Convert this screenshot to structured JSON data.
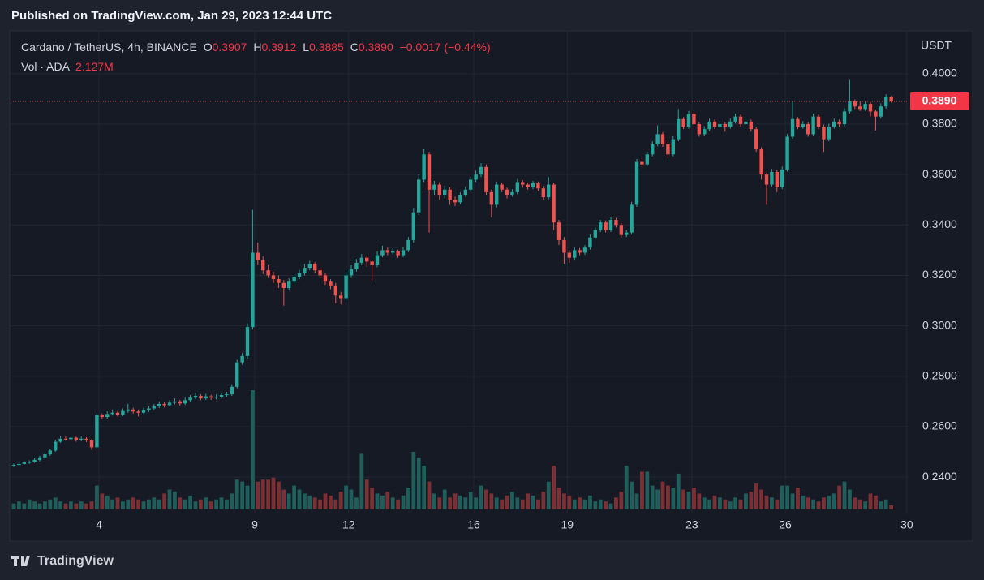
{
  "published": "Published on TradingView.com, Jan 29, 2023 12:44 UTC",
  "brand": "TradingView",
  "chart_data": {
    "type": "candlestick",
    "legend": {
      "symbol": "Cardano / TetherUS, 4h, BINANCE",
      "o_label": "O",
      "open": "0.3907",
      "h_label": "H",
      "high": "0.3912",
      "l_label": "L",
      "low": "0.3885",
      "c_label": "C",
      "close": "0.3890",
      "change": "−0.0017 (−0.44%)"
    },
    "volume_legend": {
      "label": "Vol · ADA",
      "value_label": "2.127M"
    },
    "currency": "USDT",
    "up_color": "#26a69a",
    "down_color": "#ef5350",
    "up_volume_color": "#1f5e5a",
    "down_volume_color": "#7a3034",
    "grid": true,
    "ylim": [
      0.2265,
      0.417
    ],
    "yticks": [
      {
        "value": 0.24,
        "label": "0.2400"
      },
      {
        "value": 0.26,
        "label": "0.2600"
      },
      {
        "value": 0.28,
        "label": "0.2800"
      },
      {
        "value": 0.3,
        "label": "0.3000"
      },
      {
        "value": 0.32,
        "label": "0.3200"
      },
      {
        "value": 0.34,
        "label": "0.3400"
      },
      {
        "value": 0.36,
        "label": "0.3600"
      },
      {
        "value": 0.38,
        "label": "0.3800"
      },
      {
        "value": 0.4,
        "label": "0.4000"
      }
    ],
    "xlim": [
      -0.47,
      172.34
    ],
    "xticks": [
      {
        "value": 16.4,
        "label": "4"
      },
      {
        "value": 46.4,
        "label": "9"
      },
      {
        "value": 64.5,
        "label": "12"
      },
      {
        "value": 88.6,
        "label": "16"
      },
      {
        "value": 106.6,
        "label": "19"
      },
      {
        "value": 130.6,
        "label": "23"
      },
      {
        "value": 148.6,
        "label": "26"
      },
      {
        "value": 172.0,
        "label": "30"
      }
    ],
    "last_price": {
      "value": 0.389,
      "label": "0.3890"
    },
    "candles": [
      [
        0.2445,
        0.2453,
        0.244,
        0.2448
      ],
      [
        0.2448,
        0.2458,
        0.2444,
        0.2452
      ],
      [
        0.2452,
        0.2463,
        0.2448,
        0.2458
      ],
      [
        0.2458,
        0.2466,
        0.2452,
        0.246
      ],
      [
        0.246,
        0.2474,
        0.2456,
        0.2468
      ],
      [
        0.2468,
        0.2484,
        0.2462,
        0.2478
      ],
      [
        0.2478,
        0.2496,
        0.2472,
        0.249
      ],
      [
        0.249,
        0.2512,
        0.2484,
        0.2505
      ],
      [
        0.2505,
        0.2548,
        0.25,
        0.254
      ],
      [
        0.254,
        0.2562,
        0.2535,
        0.2552
      ],
      [
        0.2552,
        0.256,
        0.2544,
        0.255
      ],
      [
        0.255,
        0.2564,
        0.2545,
        0.2556
      ],
      [
        0.2556,
        0.256,
        0.254,
        0.2548
      ],
      [
        0.2548,
        0.256,
        0.2542,
        0.2552
      ],
      [
        0.2552,
        0.2558,
        0.2538,
        0.2545
      ],
      [
        0.2545,
        0.255,
        0.2508,
        0.2518
      ],
      [
        0.2518,
        0.2655,
        0.2512,
        0.2645
      ],
      [
        0.2645,
        0.2652,
        0.263,
        0.2638
      ],
      [
        0.2638,
        0.266,
        0.2632,
        0.265
      ],
      [
        0.265,
        0.2668,
        0.2644,
        0.2655
      ],
      [
        0.2655,
        0.2662,
        0.264,
        0.2648
      ],
      [
        0.2648,
        0.2672,
        0.2642,
        0.2662
      ],
      [
        0.2662,
        0.269,
        0.2655,
        0.2668
      ],
      [
        0.2668,
        0.2675,
        0.2652,
        0.266
      ],
      [
        0.266,
        0.2668,
        0.264,
        0.2655
      ],
      [
        0.2655,
        0.2675,
        0.265,
        0.2665
      ],
      [
        0.2665,
        0.2682,
        0.2658,
        0.2672
      ],
      [
        0.2672,
        0.269,
        0.2665,
        0.268
      ],
      [
        0.268,
        0.27,
        0.2674,
        0.269
      ],
      [
        0.269,
        0.2696,
        0.2676,
        0.2685
      ],
      [
        0.2685,
        0.2705,
        0.268,
        0.2695
      ],
      [
        0.2695,
        0.2712,
        0.2688,
        0.27
      ],
      [
        0.27,
        0.2706,
        0.2684,
        0.2692
      ],
      [
        0.2692,
        0.2715,
        0.2686,
        0.2705
      ],
      [
        0.2705,
        0.2725,
        0.2698,
        0.2715
      ],
      [
        0.2715,
        0.2735,
        0.2708,
        0.2722
      ],
      [
        0.2722,
        0.2728,
        0.2705,
        0.2712
      ],
      [
        0.2712,
        0.273,
        0.2706,
        0.272
      ],
      [
        0.272,
        0.2726,
        0.2706,
        0.2715
      ],
      [
        0.2715,
        0.2728,
        0.2708,
        0.2718
      ],
      [
        0.2718,
        0.2734,
        0.2712,
        0.2725
      ],
      [
        0.2725,
        0.2738,
        0.2718,
        0.2728
      ],
      [
        0.2728,
        0.2768,
        0.2722,
        0.2758
      ],
      [
        0.2758,
        0.2865,
        0.2752,
        0.2855
      ],
      [
        0.2855,
        0.2892,
        0.2845,
        0.288
      ],
      [
        0.288,
        0.301,
        0.287,
        0.2995
      ],
      [
        0.2995,
        0.346,
        0.2985,
        0.329
      ],
      [
        0.329,
        0.333,
        0.324,
        0.326
      ],
      [
        0.326,
        0.3275,
        0.3205,
        0.322
      ],
      [
        0.322,
        0.324,
        0.319,
        0.32
      ],
      [
        0.32,
        0.3215,
        0.317,
        0.3185
      ],
      [
        0.3185,
        0.32,
        0.315,
        0.317
      ],
      [
        0.317,
        0.3182,
        0.308,
        0.315
      ],
      [
        0.315,
        0.3188,
        0.314,
        0.3175
      ],
      [
        0.3175,
        0.3205,
        0.3165,
        0.3195
      ],
      [
        0.3195,
        0.3222,
        0.3185,
        0.321
      ],
      [
        0.321,
        0.3245,
        0.32,
        0.323
      ],
      [
        0.323,
        0.3258,
        0.322,
        0.3245
      ],
      [
        0.3245,
        0.3252,
        0.321,
        0.322
      ],
      [
        0.322,
        0.323,
        0.3188,
        0.32
      ],
      [
        0.32,
        0.321,
        0.3162,
        0.3175
      ],
      [
        0.3175,
        0.3185,
        0.3145,
        0.316
      ],
      [
        0.316,
        0.317,
        0.309,
        0.312
      ],
      [
        0.312,
        0.3135,
        0.3085,
        0.311
      ],
      [
        0.311,
        0.3215,
        0.31,
        0.32
      ],
      [
        0.32,
        0.324,
        0.319,
        0.3225
      ],
      [
        0.3225,
        0.3265,
        0.3215,
        0.325
      ],
      [
        0.325,
        0.3285,
        0.324,
        0.327
      ],
      [
        0.327,
        0.328,
        0.3235,
        0.3255
      ],
      [
        0.3255,
        0.3262,
        0.318,
        0.324
      ],
      [
        0.324,
        0.3295,
        0.3232,
        0.328
      ],
      [
        0.328,
        0.3318,
        0.3272,
        0.33
      ],
      [
        0.33,
        0.331,
        0.328,
        0.329
      ],
      [
        0.329,
        0.3308,
        0.3282,
        0.3295
      ],
      [
        0.3295,
        0.3302,
        0.327,
        0.328
      ],
      [
        0.328,
        0.3312,
        0.3272,
        0.33
      ],
      [
        0.33,
        0.3352,
        0.3292,
        0.334
      ],
      [
        0.334,
        0.3465,
        0.333,
        0.345
      ],
      [
        0.345,
        0.36,
        0.344,
        0.358
      ],
      [
        0.358,
        0.37,
        0.357,
        0.368
      ],
      [
        0.368,
        0.369,
        0.337,
        0.354
      ],
      [
        0.354,
        0.3575,
        0.352,
        0.356
      ],
      [
        0.356,
        0.357,
        0.35,
        0.352
      ],
      [
        0.352,
        0.3555,
        0.3505,
        0.354
      ],
      [
        0.354,
        0.355,
        0.348,
        0.35
      ],
      [
        0.35,
        0.3512,
        0.3475,
        0.349
      ],
      [
        0.349,
        0.353,
        0.3482,
        0.352
      ],
      [
        0.352,
        0.3552,
        0.3512,
        0.354
      ],
      [
        0.354,
        0.3592,
        0.3532,
        0.358
      ],
      [
        0.358,
        0.3615,
        0.357,
        0.36
      ],
      [
        0.36,
        0.3645,
        0.359,
        0.363
      ],
      [
        0.363,
        0.364,
        0.352,
        0.353
      ],
      [
        0.353,
        0.354,
        0.343,
        0.348
      ],
      [
        0.348,
        0.3572,
        0.347,
        0.356
      ],
      [
        0.356,
        0.3568,
        0.353,
        0.354
      ],
      [
        0.354,
        0.3548,
        0.3505,
        0.352
      ],
      [
        0.352,
        0.3542,
        0.3512,
        0.353
      ],
      [
        0.353,
        0.3582,
        0.3522,
        0.357
      ],
      [
        0.357,
        0.3578,
        0.3548,
        0.356
      ],
      [
        0.356,
        0.3568,
        0.354,
        0.355
      ],
      [
        0.355,
        0.3575,
        0.3542,
        0.3565
      ],
      [
        0.3565,
        0.3572,
        0.3535,
        0.3545
      ],
      [
        0.3545,
        0.3555,
        0.35,
        0.351
      ],
      [
        0.351,
        0.359,
        0.3502,
        0.356
      ],
      [
        0.356,
        0.3568,
        0.338,
        0.341
      ],
      [
        0.341,
        0.342,
        0.332,
        0.334
      ],
      [
        0.334,
        0.3352,
        0.3245,
        0.329
      ],
      [
        0.329,
        0.33,
        0.325,
        0.327
      ],
      [
        0.327,
        0.331,
        0.3262,
        0.33
      ],
      [
        0.33,
        0.3308,
        0.328,
        0.329
      ],
      [
        0.329,
        0.332,
        0.3282,
        0.331
      ],
      [
        0.331,
        0.3362,
        0.3302,
        0.335
      ],
      [
        0.335,
        0.339,
        0.3342,
        0.338
      ],
      [
        0.338,
        0.342,
        0.3372,
        0.341
      ],
      [
        0.341,
        0.3418,
        0.337,
        0.338
      ],
      [
        0.338,
        0.343,
        0.3372,
        0.342
      ],
      [
        0.342,
        0.3428,
        0.339,
        0.34
      ],
      [
        0.34,
        0.3408,
        0.335,
        0.336
      ],
      [
        0.336,
        0.338,
        0.3352,
        0.337
      ],
      [
        0.337,
        0.3492,
        0.3362,
        0.348
      ],
      [
        0.348,
        0.3662,
        0.3472,
        0.365
      ],
      [
        0.365,
        0.3665,
        0.363,
        0.364
      ],
      [
        0.364,
        0.3692,
        0.3632,
        0.368
      ],
      [
        0.368,
        0.3732,
        0.3672,
        0.372
      ],
      [
        0.372,
        0.3795,
        0.3712,
        0.376
      ],
      [
        0.376,
        0.3768,
        0.371,
        0.372
      ],
      [
        0.372,
        0.373,
        0.3665,
        0.368
      ],
      [
        0.368,
        0.3752,
        0.3672,
        0.374
      ],
      [
        0.374,
        0.386,
        0.3732,
        0.382
      ],
      [
        0.382,
        0.3828,
        0.378,
        0.379
      ],
      [
        0.379,
        0.3852,
        0.3782,
        0.384
      ],
      [
        0.384,
        0.3848,
        0.379,
        0.38
      ],
      [
        0.38,
        0.3808,
        0.375,
        0.376
      ],
      [
        0.376,
        0.3792,
        0.3752,
        0.378
      ],
      [
        0.378,
        0.3822,
        0.3772,
        0.381
      ],
      [
        0.381,
        0.3818,
        0.378,
        0.379
      ],
      [
        0.379,
        0.3812,
        0.3782,
        0.38
      ],
      [
        0.38,
        0.3808,
        0.377,
        0.379
      ],
      [
        0.379,
        0.3822,
        0.3782,
        0.381
      ],
      [
        0.381,
        0.3842,
        0.3802,
        0.383
      ],
      [
        0.383,
        0.3838,
        0.379,
        0.38
      ],
      [
        0.38,
        0.3822,
        0.3792,
        0.381
      ],
      [
        0.381,
        0.3818,
        0.377,
        0.378
      ],
      [
        0.378,
        0.3788,
        0.369,
        0.37
      ],
      [
        0.37,
        0.3708,
        0.358,
        0.36
      ],
      [
        0.36,
        0.3608,
        0.348,
        0.356
      ],
      [
        0.356,
        0.3622,
        0.3552,
        0.361
      ],
      [
        0.361,
        0.3618,
        0.353,
        0.355
      ],
      [
        0.355,
        0.3632,
        0.3542,
        0.362
      ],
      [
        0.362,
        0.3762,
        0.3612,
        0.375
      ],
      [
        0.375,
        0.389,
        0.3742,
        0.382
      ],
      [
        0.382,
        0.3828,
        0.378,
        0.379
      ],
      [
        0.379,
        0.3812,
        0.3782,
        0.38
      ],
      [
        0.38,
        0.3808,
        0.375,
        0.376
      ],
      [
        0.376,
        0.3842,
        0.3752,
        0.383
      ],
      [
        0.383,
        0.3838,
        0.378,
        0.379
      ],
      [
        0.379,
        0.3798,
        0.369,
        0.374
      ],
      [
        0.374,
        0.3802,
        0.3732,
        0.379
      ],
      [
        0.379,
        0.3822,
        0.3782,
        0.381
      ],
      [
        0.381,
        0.3818,
        0.379,
        0.38
      ],
      [
        0.38,
        0.3862,
        0.3792,
        0.385
      ],
      [
        0.385,
        0.3975,
        0.3842,
        0.389
      ],
      [
        0.389,
        0.3898,
        0.386,
        0.387
      ],
      [
        0.387,
        0.389,
        0.3852,
        0.386
      ],
      [
        0.386,
        0.3892,
        0.3852,
        0.388
      ],
      [
        0.388,
        0.3888,
        0.383,
        0.385
      ],
      [
        0.385,
        0.3858,
        0.3775,
        0.383
      ],
      [
        0.383,
        0.3882,
        0.3822,
        0.387
      ],
      [
        0.387,
        0.3918,
        0.3862,
        0.3907
      ],
      [
        0.3907,
        0.3912,
        0.3885,
        0.389
      ]
    ],
    "volumes": [
      3,
      4,
      3,
      5,
      4,
      3,
      4,
      5,
      6,
      4,
      3,
      4,
      3,
      4,
      3,
      4,
      12,
      8,
      7,
      5,
      6,
      4,
      5,
      6,
      5,
      4,
      5,
      6,
      5,
      8,
      10,
      9,
      6,
      5,
      7,
      4,
      5,
      6,
      4,
      5,
      6,
      5,
      8,
      15,
      14,
      12,
      60,
      14,
      15,
      15,
      16,
      14,
      10,
      8,
      12,
      10,
      8,
      7,
      6,
      5,
      8,
      7,
      5,
      9,
      12,
      10,
      6,
      28,
      15,
      11,
      8,
      7,
      9,
      6,
      5,
      7,
      11,
      29,
      26,
      22,
      14,
      8,
      6,
      10,
      6,
      8,
      7,
      6,
      9,
      6,
      12,
      10,
      8,
      6,
      5,
      7,
      9,
      6,
      5,
      8,
      7,
      5,
      9,
      14,
      22,
      11,
      8,
      7,
      5,
      6,
      5,
      7,
      4,
      5,
      4,
      3,
      6,
      9,
      22,
      14,
      8,
      19,
      19,
      12,
      10,
      14,
      12,
      11,
      18,
      10,
      9,
      11,
      8,
      6,
      5,
      7,
      6,
      5,
      4,
      6,
      5,
      8,
      9,
      13,
      10,
      7,
      6,
      5,
      12,
      12,
      8,
      11,
      7,
      6,
      5,
      4,
      6,
      7,
      8,
      12,
      14,
      10,
      6,
      5,
      4,
      8,
      7,
      4,
      5,
      2.127
    ]
  }
}
